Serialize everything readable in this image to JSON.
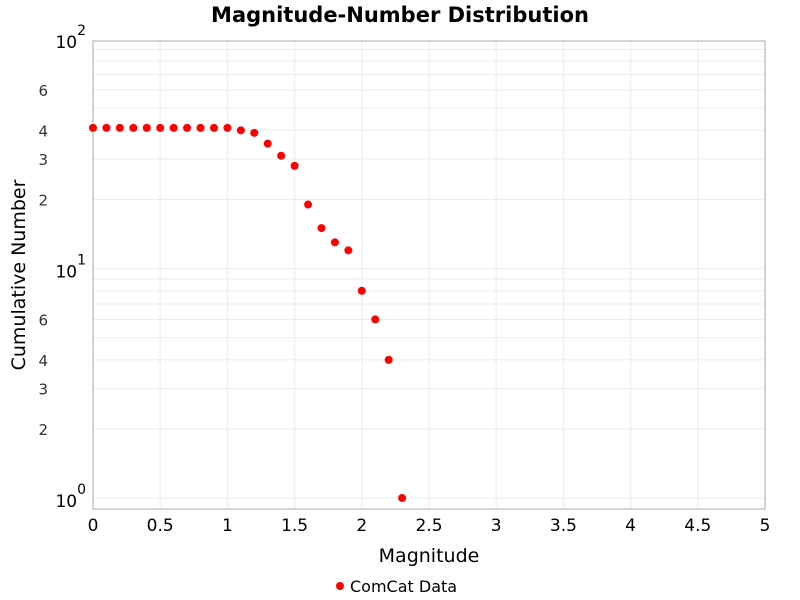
{
  "chart_data": {
    "type": "scatter",
    "title": "Magnitude-Number Distribution",
    "xlabel": "Magnitude",
    "ylabel": "Cumulative Number",
    "xlim": [
      0,
      5
    ],
    "ylim": [
      0.8,
      110
    ],
    "yscale": "log",
    "grid": true,
    "legend_position": "bottom",
    "x_ticks": [
      "0",
      "0.5",
      "1",
      "1.5",
      "2",
      "2.5",
      "3",
      "3.5",
      "4",
      "4.5",
      "5"
    ],
    "y_major_ticks": [
      {
        "base": "10",
        "exp": "0"
      },
      {
        "base": "10",
        "exp": "1"
      },
      {
        "base": "10",
        "exp": "2"
      }
    ],
    "y_minor_labels": [
      "2",
      "3",
      "4",
      "6"
    ],
    "series": [
      {
        "name": "ComCat Data",
        "color": "#ff0000",
        "x": [
          0,
          0.1,
          0.2,
          0.3,
          0.4,
          0.5,
          0.6,
          0.7,
          0.8,
          0.9,
          1.0,
          1.1,
          1.2,
          1.3,
          1.4,
          1.5,
          1.6,
          1.7,
          1.8,
          1.9,
          2.0,
          2.1,
          2.2,
          2.3
        ],
        "y": [
          41,
          41,
          41,
          41,
          41,
          41,
          41,
          41,
          41,
          41,
          41,
          40,
          39,
          35,
          31,
          28,
          19,
          15,
          13,
          12,
          8,
          6,
          4,
          1
        ]
      }
    ]
  }
}
